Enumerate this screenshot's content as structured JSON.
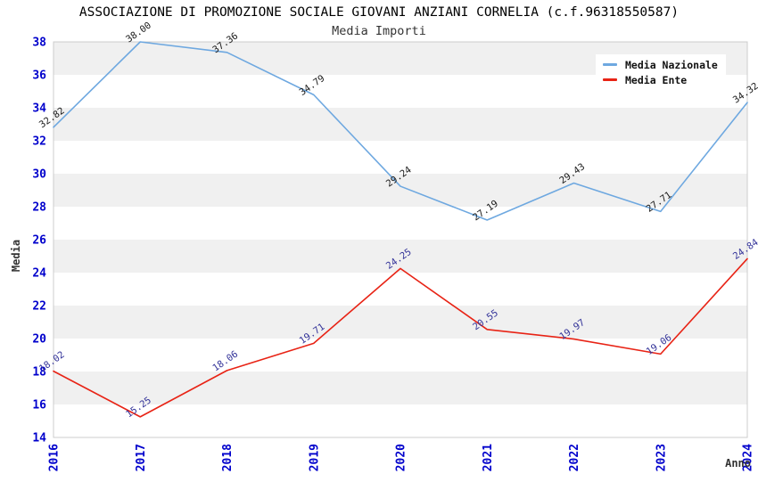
{
  "title": "ASSOCIAZIONE DI PROMOZIONE SOCIALE GIOVANI ANZIANI CORNELIA (c.f.96318550587)",
  "subtitle": "Media Importi",
  "legend": {
    "position": "top-right",
    "items": [
      {
        "label": "Media Nazionale",
        "color": "#6ea8e0"
      },
      {
        "label": "Media Ente",
        "color": "#e82315"
      }
    ]
  },
  "chart_data": {
    "type": "line",
    "title": "ASSOCIAZIONE DI PROMOZIONE SOCIALE GIOVANI ANZIANI CORNELIA (c.f.96318550587)",
    "subtitle": "Media Importi",
    "xlabel": "Anno",
    "ylabel": "Media",
    "x": [
      "2016",
      "2017",
      "2018",
      "2019",
      "2020",
      "2021",
      "2022",
      "2023",
      "2024"
    ],
    "series": [
      {
        "name": "Media Nazionale",
        "color": "#6ea8e0",
        "label_color": "#1a1a1a",
        "values": [
          32.82,
          38.0,
          37.36,
          34.79,
          29.24,
          27.19,
          29.43,
          27.71,
          34.32
        ]
      },
      {
        "name": "Media Ente",
        "color": "#e82315",
        "label_color": "#333399",
        "values": [
          18.02,
          15.25,
          18.06,
          19.71,
          24.25,
          20.55,
          19.97,
          19.06,
          24.84
        ]
      }
    ],
    "ylim": [
      14,
      38
    ],
    "ytick_step": 2,
    "grid": "horizontal-bands",
    "band_color": "#f0f0f0",
    "border_color": "#cccccc",
    "tick_label_color": "#0000cc",
    "legend_position": "top-right",
    "data_labels": true,
    "data_label_rotation_deg": -35
  }
}
